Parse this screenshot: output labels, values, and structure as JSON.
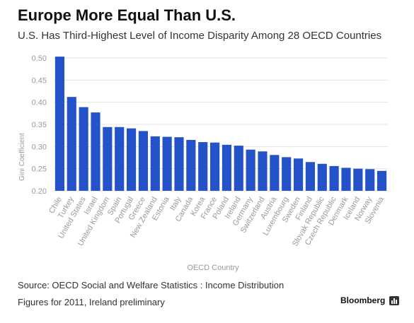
{
  "header": {
    "title": "Europe More Equal Than U.S.",
    "subtitle": "U.S. Has Third-Highest Level of Income Disparity Among 28 OECD Countries"
  },
  "footer": {
    "source": "Source: OECD Social and Welfare Statistics : Income Distribution",
    "note": "Figures for 2011, Ireland preliminary",
    "brand": "Bloomberg"
  },
  "colors": {
    "bar": "#2452c9",
    "grid": "#e3e3e3",
    "axis_text": "#9a9a9a"
  },
  "chart_data": {
    "type": "bar",
    "title": "Europe More Equal Than U.S.",
    "subtitle": "U.S. Has Third-Highest Level of Income Disparity Among 28 OECD Countries",
    "xlabel": "OECD Country",
    "ylabel": "Gini Coefficient",
    "ylim": [
      0.2,
      0.5
    ],
    "yticks": [
      "0.50",
      "0.45",
      "0.40",
      "0.35",
      "0.30",
      "0.25",
      "0.20"
    ],
    "grid": true,
    "categories": [
      "Chile",
      "Turkey",
      "United States",
      "Israel",
      "United Kingdom",
      "Spain",
      "Portugal",
      "Greece",
      "New Zealand",
      "Estonia",
      "Italy",
      "Canada",
      "Korea",
      "France",
      "Poland",
      "Ireland",
      "Germany",
      "Switzerland",
      "Austria",
      "Luxembourg",
      "Sweden",
      "Finland",
      "Slovak Republic",
      "Czech Republic",
      "Denmark",
      "Iceland",
      "Norway",
      "Slovenia"
    ],
    "values": [
      0.503,
      0.412,
      0.389,
      0.377,
      0.344,
      0.344,
      0.341,
      0.335,
      0.323,
      0.322,
      0.321,
      0.315,
      0.31,
      0.309,
      0.304,
      0.302,
      0.293,
      0.289,
      0.281,
      0.276,
      0.273,
      0.265,
      0.261,
      0.256,
      0.252,
      0.25,
      0.249,
      0.245
    ]
  }
}
